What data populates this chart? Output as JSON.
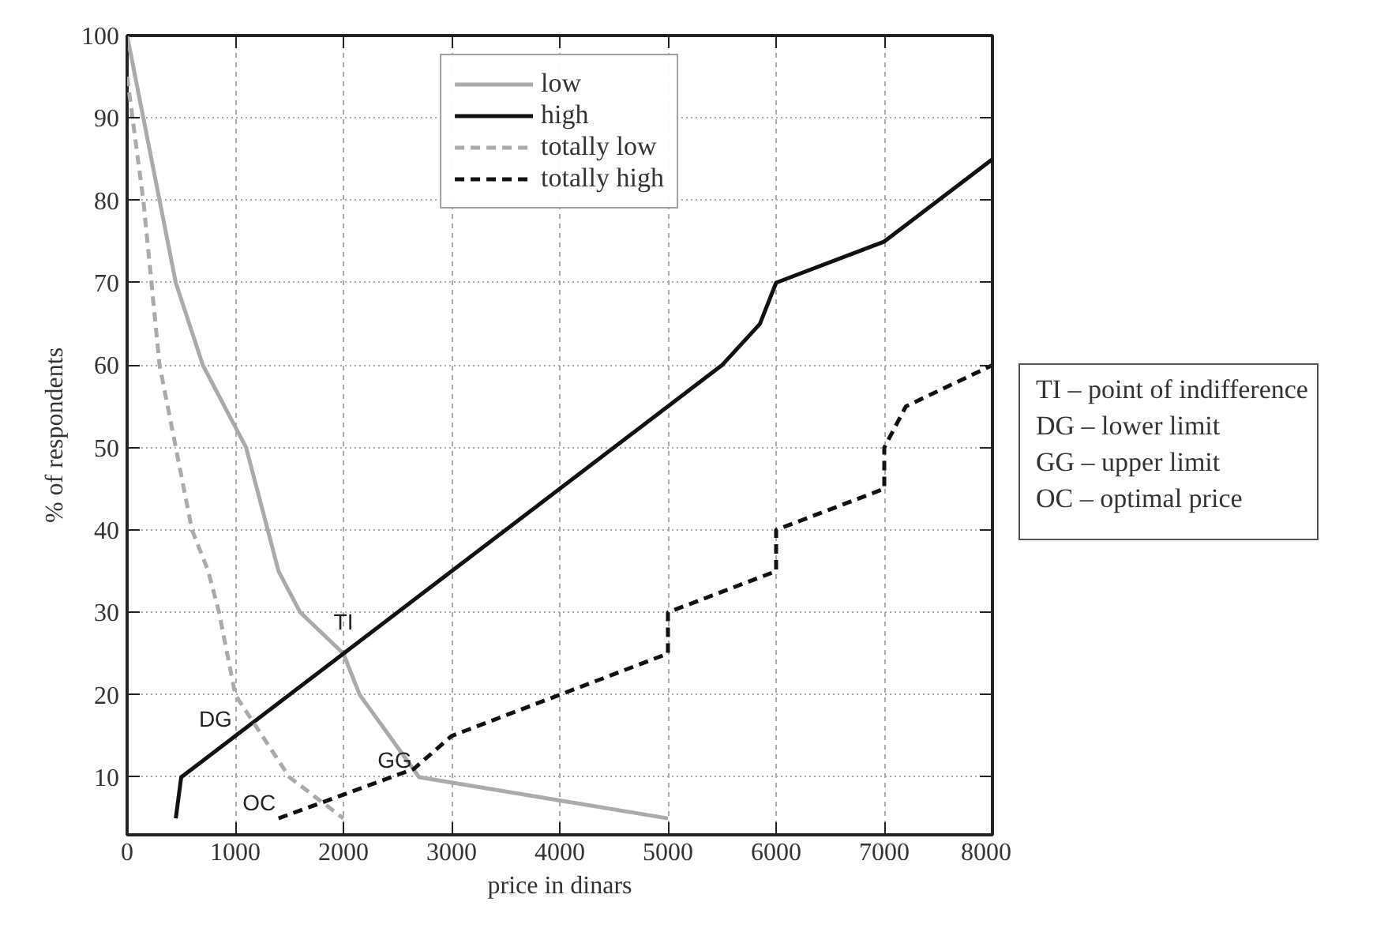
{
  "chart_data": {
    "type": "line",
    "xlabel": "price in dinars",
    "ylabel": "% of respondents",
    "xlim": [
      0,
      8000
    ],
    "ylim": [
      3,
      100
    ],
    "xticks": [
      0,
      1000,
      2000,
      3000,
      4000,
      5000,
      6000,
      7000,
      8000
    ],
    "yticks": [
      10,
      20,
      30,
      40,
      50,
      60,
      70,
      80,
      90,
      100
    ],
    "grid": true,
    "legend": "top",
    "marker": "none",
    "series": [
      {
        "name": "low",
        "color": "#aaaaaa",
        "line_style": "solid",
        "x": [
          0,
          450,
          700,
          1100,
          1300,
          1400,
          1600,
          2000,
          2150,
          2700,
          5000
        ],
        "values": [
          100,
          70,
          60,
          50,
          40,
          35,
          30,
          25,
          20,
          10,
          5
        ]
      },
      {
        "name": "high",
        "color": "#111111",
        "line_style": "solid",
        "x": [
          450,
          500,
          5500,
          5850,
          6000,
          7000,
          8000
        ],
        "values": [
          5,
          10,
          60,
          65,
          70,
          75,
          85
        ]
      },
      {
        "name": "totally low",
        "color": "#aaaaaa",
        "line_style": "dashed",
        "x": [
          0,
          150,
          300,
          450,
          600,
          750,
          850,
          1000,
          1500,
          2000
        ],
        "values": [
          95,
          80,
          60,
          50,
          40,
          35,
          30,
          20,
          10,
          5
        ]
      },
      {
        "name": "totally high",
        "color": "#111111",
        "line_style": "dashed",
        "x": [
          1400,
          2650,
          3000,
          5000,
          5000,
          6000,
          6000,
          7000,
          7000,
          7200,
          8000
        ],
        "values": [
          5,
          11,
          15,
          25,
          30,
          35,
          40,
          45,
          50,
          55,
          60
        ]
      }
    ],
    "annotations": [
      {
        "text": "TI",
        "x": 2000,
        "y": 25
      },
      {
        "text": "DG",
        "x": 1167,
        "y": 16.7
      },
      {
        "text": "GG",
        "x": 2650,
        "y": 11
      },
      {
        "text": "OC",
        "x": 1805,
        "y": 6.95
      },
      "TI – point of indifference",
      "DG – lower limit",
      "GG – upper limit",
      "OC – optimal price"
    ]
  }
}
